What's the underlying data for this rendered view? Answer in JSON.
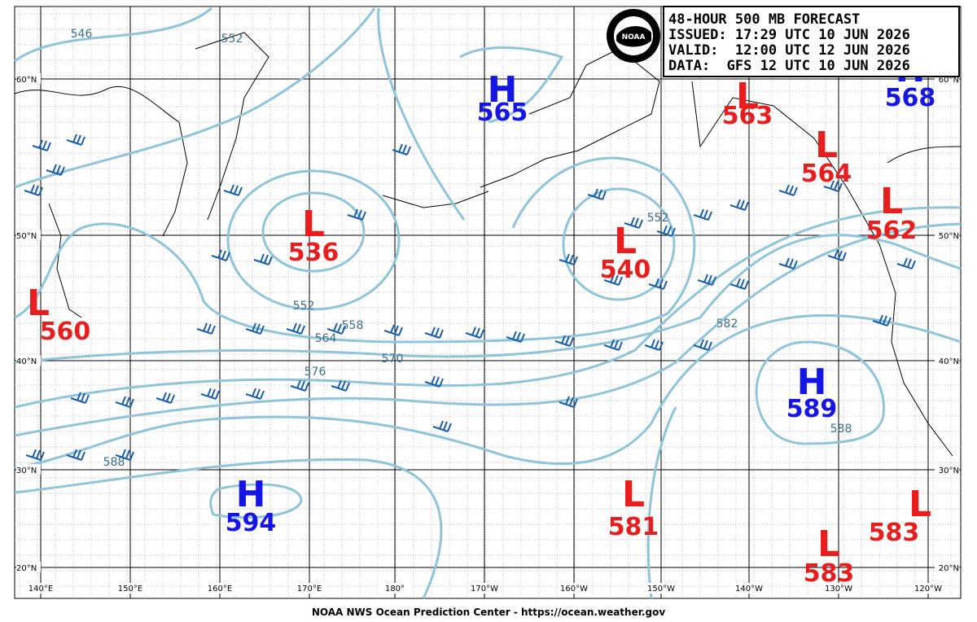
{
  "header": {
    "lines": [
      "48-HOUR 500 MB FORECAST",
      "ISSUED: 17:29 UTC 10 JUN 2026",
      "VALID:  12:00 UTC 12 JUN 2026",
      "DATA:  GFS 12 UTC 10 JUN 2026"
    ]
  },
  "footer": "NOAA NWS Ocean Prediction Center - https://ocean.weather.gov",
  "map": {
    "latitude_labels": [
      "60°N",
      "50°N",
      "40°N",
      "30°N",
      "20°N"
    ],
    "longitude_labels": [
      "140°E",
      "150°E",
      "160°E",
      "170°E",
      "180°",
      "170°W",
      "160°W",
      "150°W",
      "140°W",
      "130°W",
      "120°W"
    ],
    "centers": [
      {
        "type": "H",
        "value": 565
      },
      {
        "type": "L",
        "value": 563
      },
      {
        "type": "H",
        "value": 568
      },
      {
        "type": "L",
        "value": 564
      },
      {
        "type": "L",
        "value": 562
      },
      {
        "type": "L",
        "value": 536
      },
      {
        "type": "L",
        "value": 540
      },
      {
        "type": "L",
        "value": 560
      },
      {
        "type": "H",
        "value": 589
      },
      {
        "type": "H",
        "value": 594
      },
      {
        "type": "L",
        "value": 581
      },
      {
        "type": "L",
        "value": 583
      },
      {
        "type": "L",
        "value": 583
      }
    ],
    "contour_labels": [
      546,
      552,
      552,
      558,
      564,
      570,
      576,
      588,
      582,
      588,
      552
    ]
  }
}
